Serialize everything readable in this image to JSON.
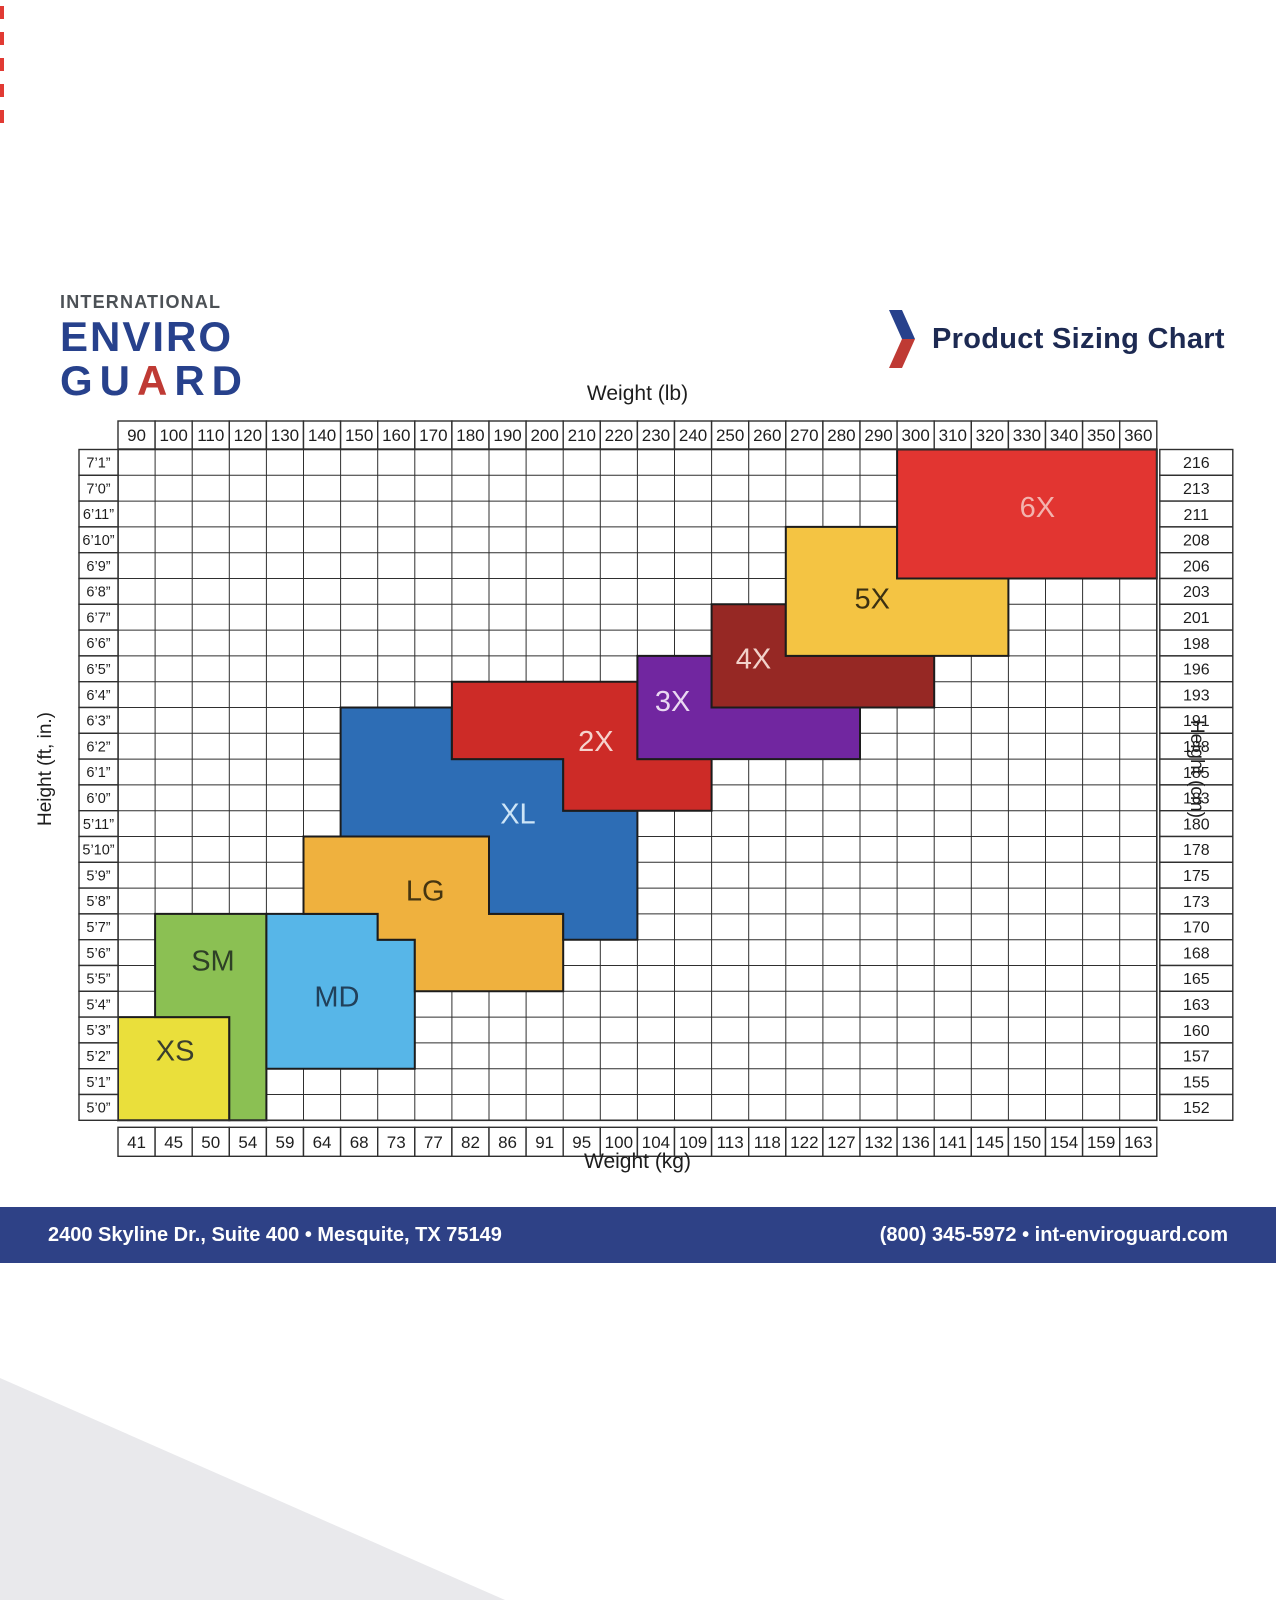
{
  "brand": {
    "navy": "#27418c",
    "red": "#bf3a34",
    "title_color": "#1d2a52",
    "footer_bg": "#2e4186",
    "grid_line": "#2f2f2f"
  },
  "logo": {
    "line1": "INTERNATIONAL",
    "line2": "ENVIRO",
    "guard_pre": "GU",
    "guard_a": "A",
    "guard_post": "RD"
  },
  "title": "Product Sizing Chart",
  "footer": {
    "address": "2400 Skyline Dr., Suite 400 • Mesquite, TX 75149",
    "contact": "(800) 345-5972 • int-enviroguard.com"
  },
  "chart_data": {
    "type": "heatmap",
    "title": "Product Sizing Chart",
    "grid": {
      "cols": 28,
      "rows": 26
    },
    "axes": {
      "top": {
        "label": "Weight (lb)",
        "ticks": [
          "90",
          "100",
          "110",
          "120",
          "130",
          "140",
          "150",
          "160",
          "170",
          "180",
          "190",
          "200",
          "210",
          "220",
          "230",
          "240",
          "250",
          "260",
          "270",
          "280",
          "290",
          "300",
          "310",
          "320",
          "330",
          "340",
          "350",
          "360"
        ]
      },
      "bottom": {
        "label": "Weight (kg)",
        "ticks": [
          "41",
          "45",
          "50",
          "54",
          "59",
          "64",
          "68",
          "73",
          "77",
          "82",
          "86",
          "91",
          "95",
          "100",
          "104",
          "109",
          "113",
          "118",
          "122",
          "127",
          "132",
          "136",
          "141",
          "145",
          "150",
          "154",
          "159",
          "163"
        ]
      },
      "left": {
        "label": "Height (ft, in.)",
        "ticks": [
          "7’1”",
          "7’0”",
          "6’11”",
          "6’10”",
          "6’9”",
          "6’8”",
          "6’7”",
          "6’6”",
          "6’5”",
          "6’4”",
          "6’3”",
          "6’2”",
          "6’1”",
          "6’0”",
          "5’11”",
          "5’10”",
          "5’9”",
          "5’8”",
          "5’7”",
          "5’6”",
          "5’5”",
          "5’4”",
          "5’3”",
          "5’2”",
          "5’1”",
          "5’0”"
        ]
      },
      "right": {
        "label": "Height (cm)",
        "ticks": [
          "216",
          "213",
          "211",
          "208",
          "206",
          "203",
          "201",
          "198",
          "196",
          "193",
          "191",
          "188",
          "185",
          "183",
          "180",
          "178",
          "175",
          "173",
          "170",
          "168",
          "165",
          "163",
          "160",
          "157",
          "155",
          "152"
        ]
      }
    },
    "regions": [
      {
        "label": "XS",
        "color": "#eadf3b",
        "text_color": "#3a3f2e",
        "polygon": [
          [
            0,
            22
          ],
          [
            3,
            22
          ],
          [
            3,
            26
          ],
          [
            0,
            26
          ]
        ],
        "label_pos": [
          1.54,
          23.3
        ]
      },
      {
        "label": "SM",
        "color": "#8bc053",
        "text_color": "#2e4026",
        "polygon": [
          [
            1,
            18
          ],
          [
            4,
            18
          ],
          [
            4,
            26
          ],
          [
            3,
            26
          ],
          [
            3,
            22
          ],
          [
            1,
            22
          ]
        ],
        "label_pos": [
          2.56,
          19.8
        ]
      },
      {
        "label": "MD",
        "color": "#57b6e8",
        "text_color": "#21405a",
        "polygon": [
          [
            4,
            18
          ],
          [
            7,
            18
          ],
          [
            7,
            19
          ],
          [
            8,
            19
          ],
          [
            8,
            24
          ],
          [
            4,
            24
          ]
        ],
        "label_pos": [
          5.9,
          21.2
        ]
      },
      {
        "label": "LG",
        "color": "#efb13e",
        "text_color": "#453510",
        "polygon": [
          [
            5,
            15
          ],
          [
            10,
            15
          ],
          [
            10,
            18
          ],
          [
            12,
            18
          ],
          [
            12,
            21
          ],
          [
            8,
            21
          ],
          [
            8,
            19
          ],
          [
            7,
            19
          ],
          [
            7,
            18
          ],
          [
            5,
            18
          ]
        ],
        "label_pos": [
          8.28,
          17.1
        ]
      },
      {
        "label": "XL",
        "color": "#2d6db5",
        "text_color": "#cde5f7",
        "polygon": [
          [
            6,
            10
          ],
          [
            9,
            10
          ],
          [
            9,
            12
          ],
          [
            12,
            12
          ],
          [
            12,
            14
          ],
          [
            14,
            14
          ],
          [
            14,
            19
          ],
          [
            12,
            19
          ],
          [
            12,
            18
          ],
          [
            10,
            18
          ],
          [
            10,
            15
          ],
          [
            6,
            15
          ]
        ],
        "label_pos": [
          10.78,
          14.1
        ]
      },
      {
        "label": "2X",
        "color": "#cd2b27",
        "text_color": "#f6d3cd",
        "polygon": [
          [
            9,
            9
          ],
          [
            14,
            9
          ],
          [
            14,
            12
          ],
          [
            16,
            12
          ],
          [
            16,
            14
          ],
          [
            12,
            14
          ],
          [
            12,
            12
          ],
          [
            9,
            12
          ]
        ],
        "label_pos": [
          12.88,
          11.3
        ]
      },
      {
        "label": "3X",
        "color": "#7126a0",
        "text_color": "#ead9f2",
        "polygon": [
          [
            14,
            8
          ],
          [
            16,
            8
          ],
          [
            16,
            10
          ],
          [
            20,
            10
          ],
          [
            20,
            12
          ],
          [
            14,
            12
          ]
        ],
        "label_pos": [
          14.95,
          9.75
        ]
      },
      {
        "label": "4X",
        "color": "#962824",
        "text_color": "#f2d2ca",
        "polygon": [
          [
            16,
            6
          ],
          [
            18,
            6
          ],
          [
            18,
            8
          ],
          [
            22,
            8
          ],
          [
            22,
            10
          ],
          [
            16,
            10
          ]
        ],
        "label_pos": [
          17.13,
          8.1
        ]
      },
      {
        "label": "5X",
        "color": "#f4c443",
        "text_color": "#3c3112",
        "polygon": [
          [
            18,
            3
          ],
          [
            21,
            3
          ],
          [
            21,
            5
          ],
          [
            24,
            5
          ],
          [
            24,
            8
          ],
          [
            18,
            8
          ]
        ],
        "label_pos": [
          20.33,
          5.78
        ]
      },
      {
        "label": "6X",
        "color": "#e23531",
        "text_color": "#f3b3ae",
        "polygon": [
          [
            21,
            0
          ],
          [
            28,
            0
          ],
          [
            28,
            5
          ],
          [
            21,
            5
          ]
        ],
        "label_pos": [
          24.78,
          2.23
        ]
      }
    ]
  }
}
